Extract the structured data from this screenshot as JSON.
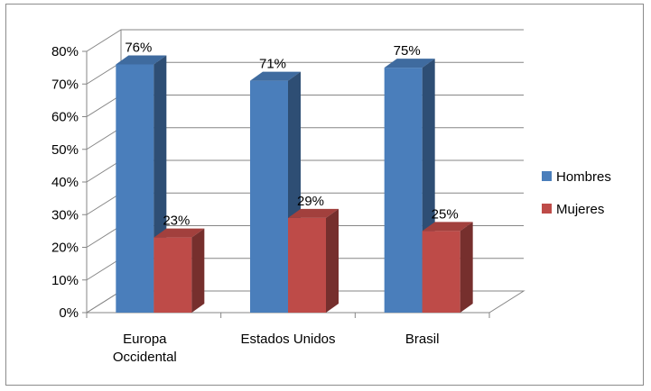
{
  "chart_data": {
    "type": "bar",
    "style": "3d-clustered-column",
    "categories": [
      "Europa\nOccidental",
      "Estados Unidos",
      "Brasil"
    ],
    "series": [
      {
        "name": "Hombres",
        "values": [
          76,
          71,
          75
        ],
        "labels": [
          "76%",
          "71%",
          "75%"
        ],
        "color": "#4a7ebb"
      },
      {
        "name": "Mujeres",
        "values": [
          23,
          29,
          25
        ],
        "labels": [
          "23%",
          "29%",
          "25%"
        ],
        "color": "#be4b48"
      }
    ],
    "y_ticks": [
      "0%",
      "10%",
      "20%",
      "30%",
      "40%",
      "50%",
      "60%",
      "70%",
      "80%"
    ],
    "ylim": [
      0,
      80
    ],
    "grid": true,
    "legend_position": "right",
    "title": "",
    "xlabel": "",
    "ylabel": ""
  }
}
